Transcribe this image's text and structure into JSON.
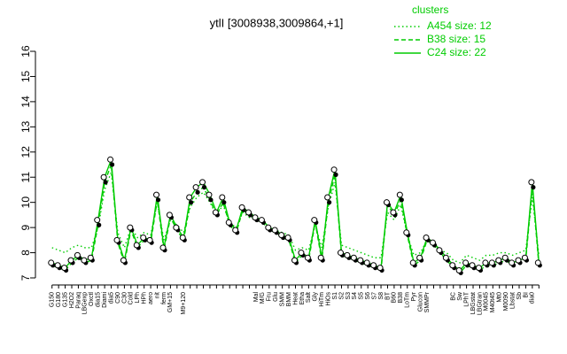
{
  "chart_data": {
    "type": "line",
    "title": "ytlI [3008938,3009864,+1]",
    "legend_title": "clusters",
    "legend_position": "top-right",
    "categories": [
      "G150",
      "G180",
      "G135",
      "H2O2",
      "Paraq",
      "LBGexp",
      "Oxctl",
      "dia15",
      "Diami",
      "dia5",
      "C90",
      "C30",
      "Cold",
      "LPh",
      "HPh",
      "aero",
      "nit",
      "ferm",
      "GM+15",
      null,
      "M9+120",
      null,
      null,
      null,
      null,
      null,
      null,
      null,
      null,
      null,
      null,
      "Mal",
      "M/G",
      "Fru",
      "Glu",
      "SMM",
      "BMM",
      "Heat",
      "Etha",
      "Salt",
      "Gly",
      "HiTm",
      "HiOs",
      "S1",
      "S2",
      "S3",
      "S4",
      "S5",
      "S6",
      "S7",
      "S8",
      "BT",
      "B60",
      "B38",
      "LoTm",
      "Pyr",
      "Glucon",
      "SMMPr",
      null,
      null,
      null,
      "BC",
      "Sw",
      "LPhT",
      "LBGstat",
      "LBGtran",
      "M0045",
      "M40t45",
      "Mt0",
      "M0090",
      "Lbstat",
      "Sb",
      "BI",
      "dia0",
      null
    ],
    "series": [
      {
        "name": "A454 size: 12",
        "color": "#00cc00",
        "dash": "dotted",
        "values": [
          8.2,
          8.1,
          8.0,
          8.2,
          8.3,
          8.2,
          8.2,
          9.0,
          10.5,
          11.2,
          8.8,
          8.2,
          9.0,
          8.6,
          8.8,
          8.7,
          10.0,
          8.5,
          9.3,
          9.1,
          8.8,
          9.8,
          10.2,
          10.4,
          10.0,
          9.5,
          9.9,
          9.2,
          9.0,
          9.6,
          9.4,
          9.3,
          9.2,
          9.0,
          8.9,
          8.8,
          8.7,
          8.1,
          8.2,
          8.1,
          9.1,
          8.2,
          9.8,
          10.8,
          8.3,
          8.2,
          8.1,
          8.0,
          7.9,
          7.8,
          7.8,
          9.6,
          9.3,
          9.9,
          8.7,
          7.9,
          8.0,
          8.5,
          8.3,
          8.1,
          8.0,
          7.7,
          7.6,
          7.9,
          7.8,
          7.7,
          7.9,
          7.9,
          8.0,
          8.0,
          7.9,
          8.0,
          8.1,
          10.2,
          7.9
        ]
      },
      {
        "name": "B38 size: 15",
        "color": "#00cc00",
        "dash": "dashed",
        "values": [
          7.5,
          7.4,
          7.3,
          7.6,
          7.8,
          7.6,
          7.7,
          9.1,
          10.8,
          11.5,
          8.4,
          7.6,
          8.9,
          8.2,
          8.5,
          8.4,
          10.1,
          8.1,
          9.4,
          8.9,
          8.5,
          10.0,
          10.4,
          10.6,
          10.1,
          9.5,
          10.0,
          9.1,
          8.8,
          9.7,
          9.5,
          9.3,
          9.2,
          8.9,
          8.8,
          8.6,
          8.5,
          7.6,
          7.9,
          7.7,
          9.2,
          7.7,
          10.0,
          11.1,
          7.9,
          7.8,
          7.7,
          7.6,
          7.5,
          7.4,
          7.3,
          9.9,
          9.5,
          10.1,
          8.7,
          7.5,
          7.7,
          8.5,
          8.3,
          8.0,
          7.7,
          7.4,
          7.2,
          7.5,
          7.4,
          7.3,
          7.5,
          7.5,
          7.6,
          7.7,
          7.5,
          7.6,
          7.7,
          10.6,
          7.5
        ]
      },
      {
        "name": "C24 size: 22",
        "color": "#00cc00",
        "dash": "solid",
        "values": [
          7.6,
          7.5,
          7.4,
          7.7,
          7.9,
          7.7,
          7.8,
          9.3,
          11.0,
          11.7,
          8.5,
          7.7,
          9.0,
          8.3,
          8.6,
          8.5,
          10.3,
          8.2,
          9.5,
          9.0,
          8.6,
          10.2,
          10.6,
          10.8,
          10.3,
          9.6,
          10.2,
          9.2,
          8.9,
          9.8,
          9.6,
          9.4,
          9.3,
          9.0,
          8.9,
          8.7,
          8.6,
          7.7,
          8.0,
          7.8,
          9.3,
          7.8,
          10.2,
          11.3,
          8.0,
          7.9,
          7.8,
          7.7,
          7.6,
          7.5,
          7.4,
          10.0,
          9.6,
          10.3,
          8.8,
          7.6,
          7.8,
          8.6,
          8.4,
          8.1,
          7.8,
          7.5,
          7.3,
          7.6,
          7.5,
          7.4,
          7.6,
          7.6,
          7.7,
          7.8,
          7.6,
          7.7,
          7.8,
          10.8,
          7.6
        ]
      }
    ],
    "ylim": [
      7,
      16
    ],
    "yticks": [
      7,
      8,
      9,
      10,
      11,
      12,
      13,
      14,
      15,
      16
    ]
  }
}
